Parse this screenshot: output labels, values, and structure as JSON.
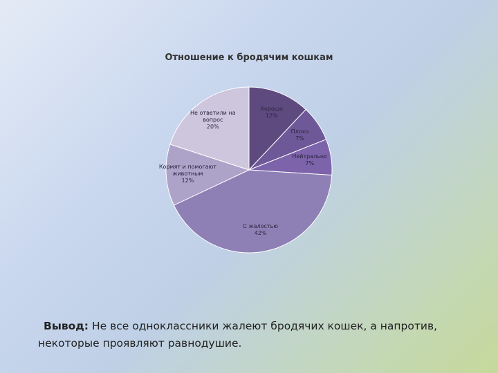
{
  "chart_data": {
    "type": "pie",
    "title": "Отношение к бродячим кошкам",
    "categories": [
      "Хорошо",
      "Плохо",
      "Нейтрально",
      "С жалостью",
      "Кормят и помогают животным",
      "Не ответили на вопрос"
    ],
    "values": [
      12,
      7,
      7,
      42,
      12,
      20
    ],
    "value_labels": [
      "12%",
      "7%",
      "7%",
      "42%",
      "12%",
      "20%"
    ],
    "colors": [
      "#5f4a80",
      "#6e5898",
      "#7c63aa",
      "#8e80b5",
      "#ada3c8",
      "#cdc6dc"
    ]
  },
  "conclusion": {
    "label": "Вывод:",
    "text": "Не все одноклассники жалеют бродячих кошек, а напротив, некоторые проявляют равнодушие."
  }
}
